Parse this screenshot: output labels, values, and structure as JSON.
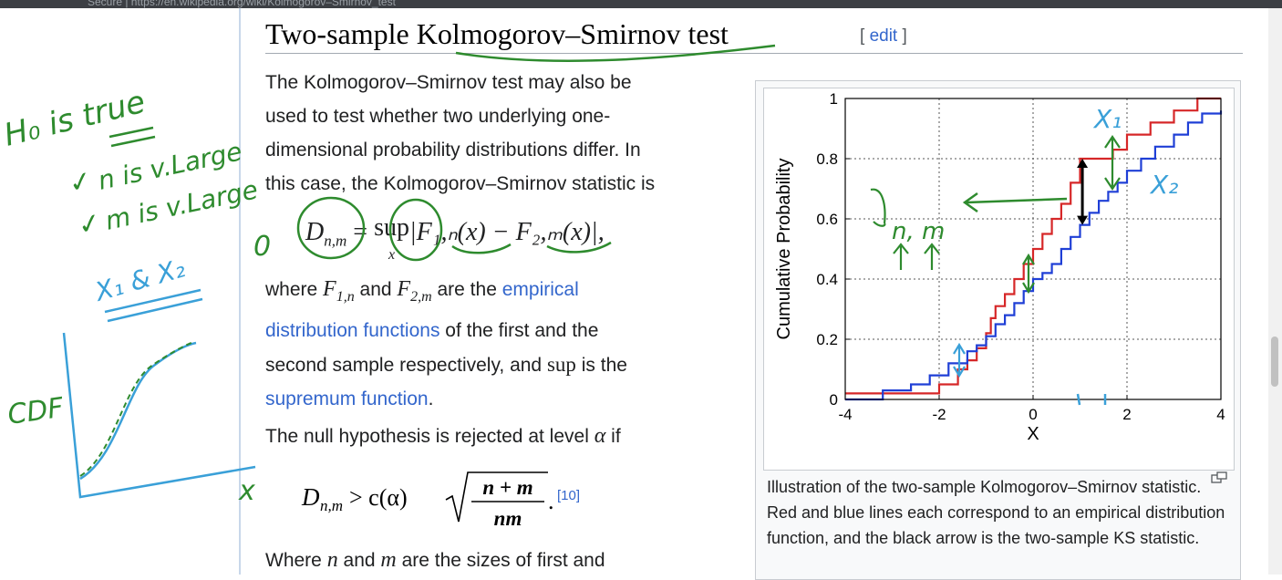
{
  "browser": {
    "address": "Secure  |  https://en.wikipedia.org/wiki/Kolmogorov–Smirnov_test"
  },
  "section": {
    "title": "Two-sample Kolmogorov–Smirnov test",
    "edit_label": "edit",
    "bracket_open": "[ ",
    "bracket_close": " ]"
  },
  "paragraph1": {
    "line1": "The Kolmogorov–Smirnov test may also be",
    "line2": "used to test whether two underlying one-",
    "line3": "dimensional probability distributions differ. In",
    "line4": "this case, the Kolmogorov–Smirnov statistic is"
  },
  "formula1": {
    "lhs": "D",
    "lhs_sub": "n,m",
    "eq": " = ",
    "sup": "sup",
    "sup_sub": "x",
    "rhs": "|F₁,ₙ(x) − F₂,ₘ(x)|,"
  },
  "paragraph2": {
    "w1": "where ",
    "f1": "F",
    "f1sub": "1,n",
    "w2": " and ",
    "f2": "F",
    "f2sub": "2,m",
    "w3": " are the ",
    "link1": "empirical",
    "link1b": "distribution functions",
    "w4": " of the first and the",
    "w5": "second sample respectively, and ",
    "supword": "sup",
    "w6": " is the",
    "link2": "supremum function",
    "w7": "."
  },
  "paragraph3": {
    "text": "The null hypothesis is rejected at level ",
    "alpha": "α",
    "end": " if"
  },
  "formula2": {
    "lhs": "D",
    "lhs_sub": "n,m",
    "rel": " > c(α)",
    "num": "n + m",
    "den": "nm",
    "dot": ".",
    "ref": "[10]"
  },
  "paragraph4": {
    "w1": "Where ",
    "n": "n",
    "w2": " and ",
    "m": "m",
    "w3": " are the sizes of first and"
  },
  "figure": {
    "caption": "Illustration of the two-sample Kolmogorov–Smirnov statistic. Red and blue lines each correspond to an empirical distribution function, and the black arrow is the two-sample KS statistic."
  },
  "annotations": {
    "h0": "H₀ is true",
    "n_large": "n is v.Large",
    "m_large": "m is v.Large",
    "x1x2": "X₁ & X₂",
    "cdf": "CDF",
    "x_axis": "x",
    "x1_label": "X₁",
    "x2_label": "X₂",
    "nm_label": "n, m",
    "zero": "0",
    "check1": "✓",
    "check2": "✓"
  },
  "colors": {
    "red_series": "#d62728",
    "blue_series": "#1f3fd6",
    "annotation_green": "#2e8b2e",
    "annotation_blue": "#3aa0d8",
    "link": "#3366cc"
  },
  "chart_data": {
    "type": "line",
    "xlabel": "X",
    "ylabel": "Cumulative Probability",
    "xlim": [
      -4,
      4
    ],
    "ylim": [
      0,
      1
    ],
    "xticks": [
      -4,
      -2,
      0,
      2,
      4
    ],
    "yticks": [
      0,
      0.2,
      0.4,
      0.6,
      0.8,
      1
    ],
    "xtick_labels": [
      "-4",
      "-2",
      "0",
      "2",
      "4"
    ],
    "ytick_labels": [
      "0",
      "0.2",
      "0.4",
      "0.6",
      "0.8",
      "1"
    ],
    "grid": true,
    "series": [
      {
        "color": "#d62728",
        "step": true,
        "points": [
          [
            -4,
            0.02
          ],
          [
            -2.3,
            0.02
          ],
          [
            -2.0,
            0.05
          ],
          [
            -1.6,
            0.1
          ],
          [
            -1.4,
            0.13
          ],
          [
            -1.2,
            0.17
          ],
          [
            -1.0,
            0.22
          ],
          [
            -0.9,
            0.27
          ],
          [
            -0.8,
            0.31
          ],
          [
            -0.6,
            0.35
          ],
          [
            -0.4,
            0.4
          ],
          [
            -0.2,
            0.45
          ],
          [
            0,
            0.5
          ],
          [
            0.2,
            0.55
          ],
          [
            0.4,
            0.6
          ],
          [
            0.6,
            0.65
          ],
          [
            0.8,
            0.72
          ],
          [
            1.0,
            0.8
          ],
          [
            1.5,
            0.8
          ],
          [
            1.7,
            0.83
          ],
          [
            2.0,
            0.88
          ],
          [
            2.5,
            0.92
          ],
          [
            3.0,
            0.96
          ],
          [
            3.5,
            1.0
          ],
          [
            4,
            1.0
          ]
        ]
      },
      {
        "color": "#1f3fd6",
        "step": true,
        "points": [
          [
            -4,
            0.0
          ],
          [
            -3.2,
            0.03
          ],
          [
            -2.6,
            0.05
          ],
          [
            -2.2,
            0.08
          ],
          [
            -1.8,
            0.12
          ],
          [
            -1.4,
            0.16
          ],
          [
            -1.2,
            0.18
          ],
          [
            -1.0,
            0.21
          ],
          [
            -0.8,
            0.25
          ],
          [
            -0.6,
            0.28
          ],
          [
            -0.4,
            0.32
          ],
          [
            -0.2,
            0.36
          ],
          [
            0,
            0.4
          ],
          [
            0.2,
            0.42
          ],
          [
            0.4,
            0.45
          ],
          [
            0.6,
            0.5
          ],
          [
            0.8,
            0.54
          ],
          [
            1.0,
            0.58
          ],
          [
            1.2,
            0.62
          ],
          [
            1.4,
            0.66
          ],
          [
            1.6,
            0.69
          ],
          [
            1.8,
            0.72
          ],
          [
            2.0,
            0.76
          ],
          [
            2.3,
            0.8
          ],
          [
            2.6,
            0.84
          ],
          [
            3.0,
            0.88
          ],
          [
            3.3,
            0.92
          ],
          [
            3.6,
            0.95
          ],
          [
            4,
            0.96
          ]
        ]
      }
    ],
    "annotation": "black double arrow at X≈1.05 between y≈0.58 and y≈0.8"
  }
}
